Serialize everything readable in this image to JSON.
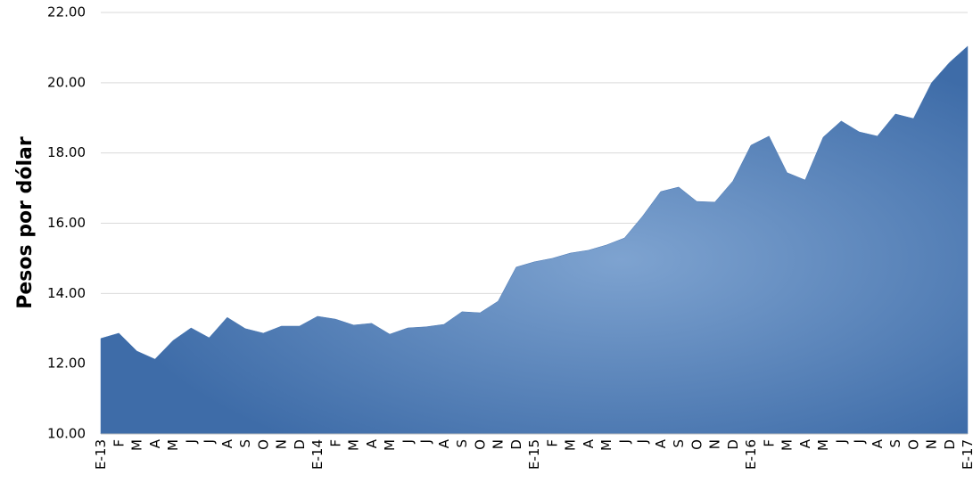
{
  "chart_data": {
    "type": "area",
    "y_label": "Pesos por dólar",
    "categories": [
      "E-13",
      "F",
      "M",
      "A",
      "M",
      "J",
      "J",
      "A",
      "S",
      "O",
      "N",
      "D",
      "E-14",
      "F",
      "M",
      "A",
      "M",
      "J",
      "J",
      "A",
      "S",
      "O",
      "N",
      "D",
      "E-15",
      "F",
      "M",
      "A",
      "M",
      "J",
      "J",
      "A",
      "S",
      "O",
      "N",
      "D",
      "E-16",
      "F",
      "M",
      "A",
      "M",
      "J",
      "J",
      "A",
      "S",
      "O",
      "N",
      "D",
      "E-17"
    ],
    "values": [
      12.72,
      12.87,
      12.36,
      12.13,
      12.66,
      13.02,
      12.74,
      13.32,
      13.0,
      12.87,
      13.07,
      13.07,
      13.35,
      13.27,
      13.1,
      13.15,
      12.84,
      13.02,
      13.05,
      13.12,
      13.48,
      13.45,
      13.78,
      14.75,
      14.9,
      15.0,
      15.15,
      15.23,
      15.38,
      15.58,
      16.2,
      16.9,
      17.03,
      16.62,
      16.6,
      17.2,
      18.22,
      18.48,
      17.44,
      17.23,
      18.45,
      18.91,
      18.6,
      18.48,
      19.11,
      18.98,
      20.0,
      20.58,
      21.04
    ],
    "color": "#4a78b4",
    "ylim": [
      10,
      22
    ],
    "yticks": [
      {
        "value": 10,
        "label": "10.00"
      },
      {
        "value": 12,
        "label": "12.00"
      },
      {
        "value": 14,
        "label": "14.00"
      },
      {
        "value": 16,
        "label": "16.00"
      },
      {
        "value": 18,
        "label": "18.00"
      },
      {
        "value": 20,
        "label": "20.00"
      },
      {
        "value": 22,
        "label": "22.00"
      }
    ],
    "grid": true
  }
}
